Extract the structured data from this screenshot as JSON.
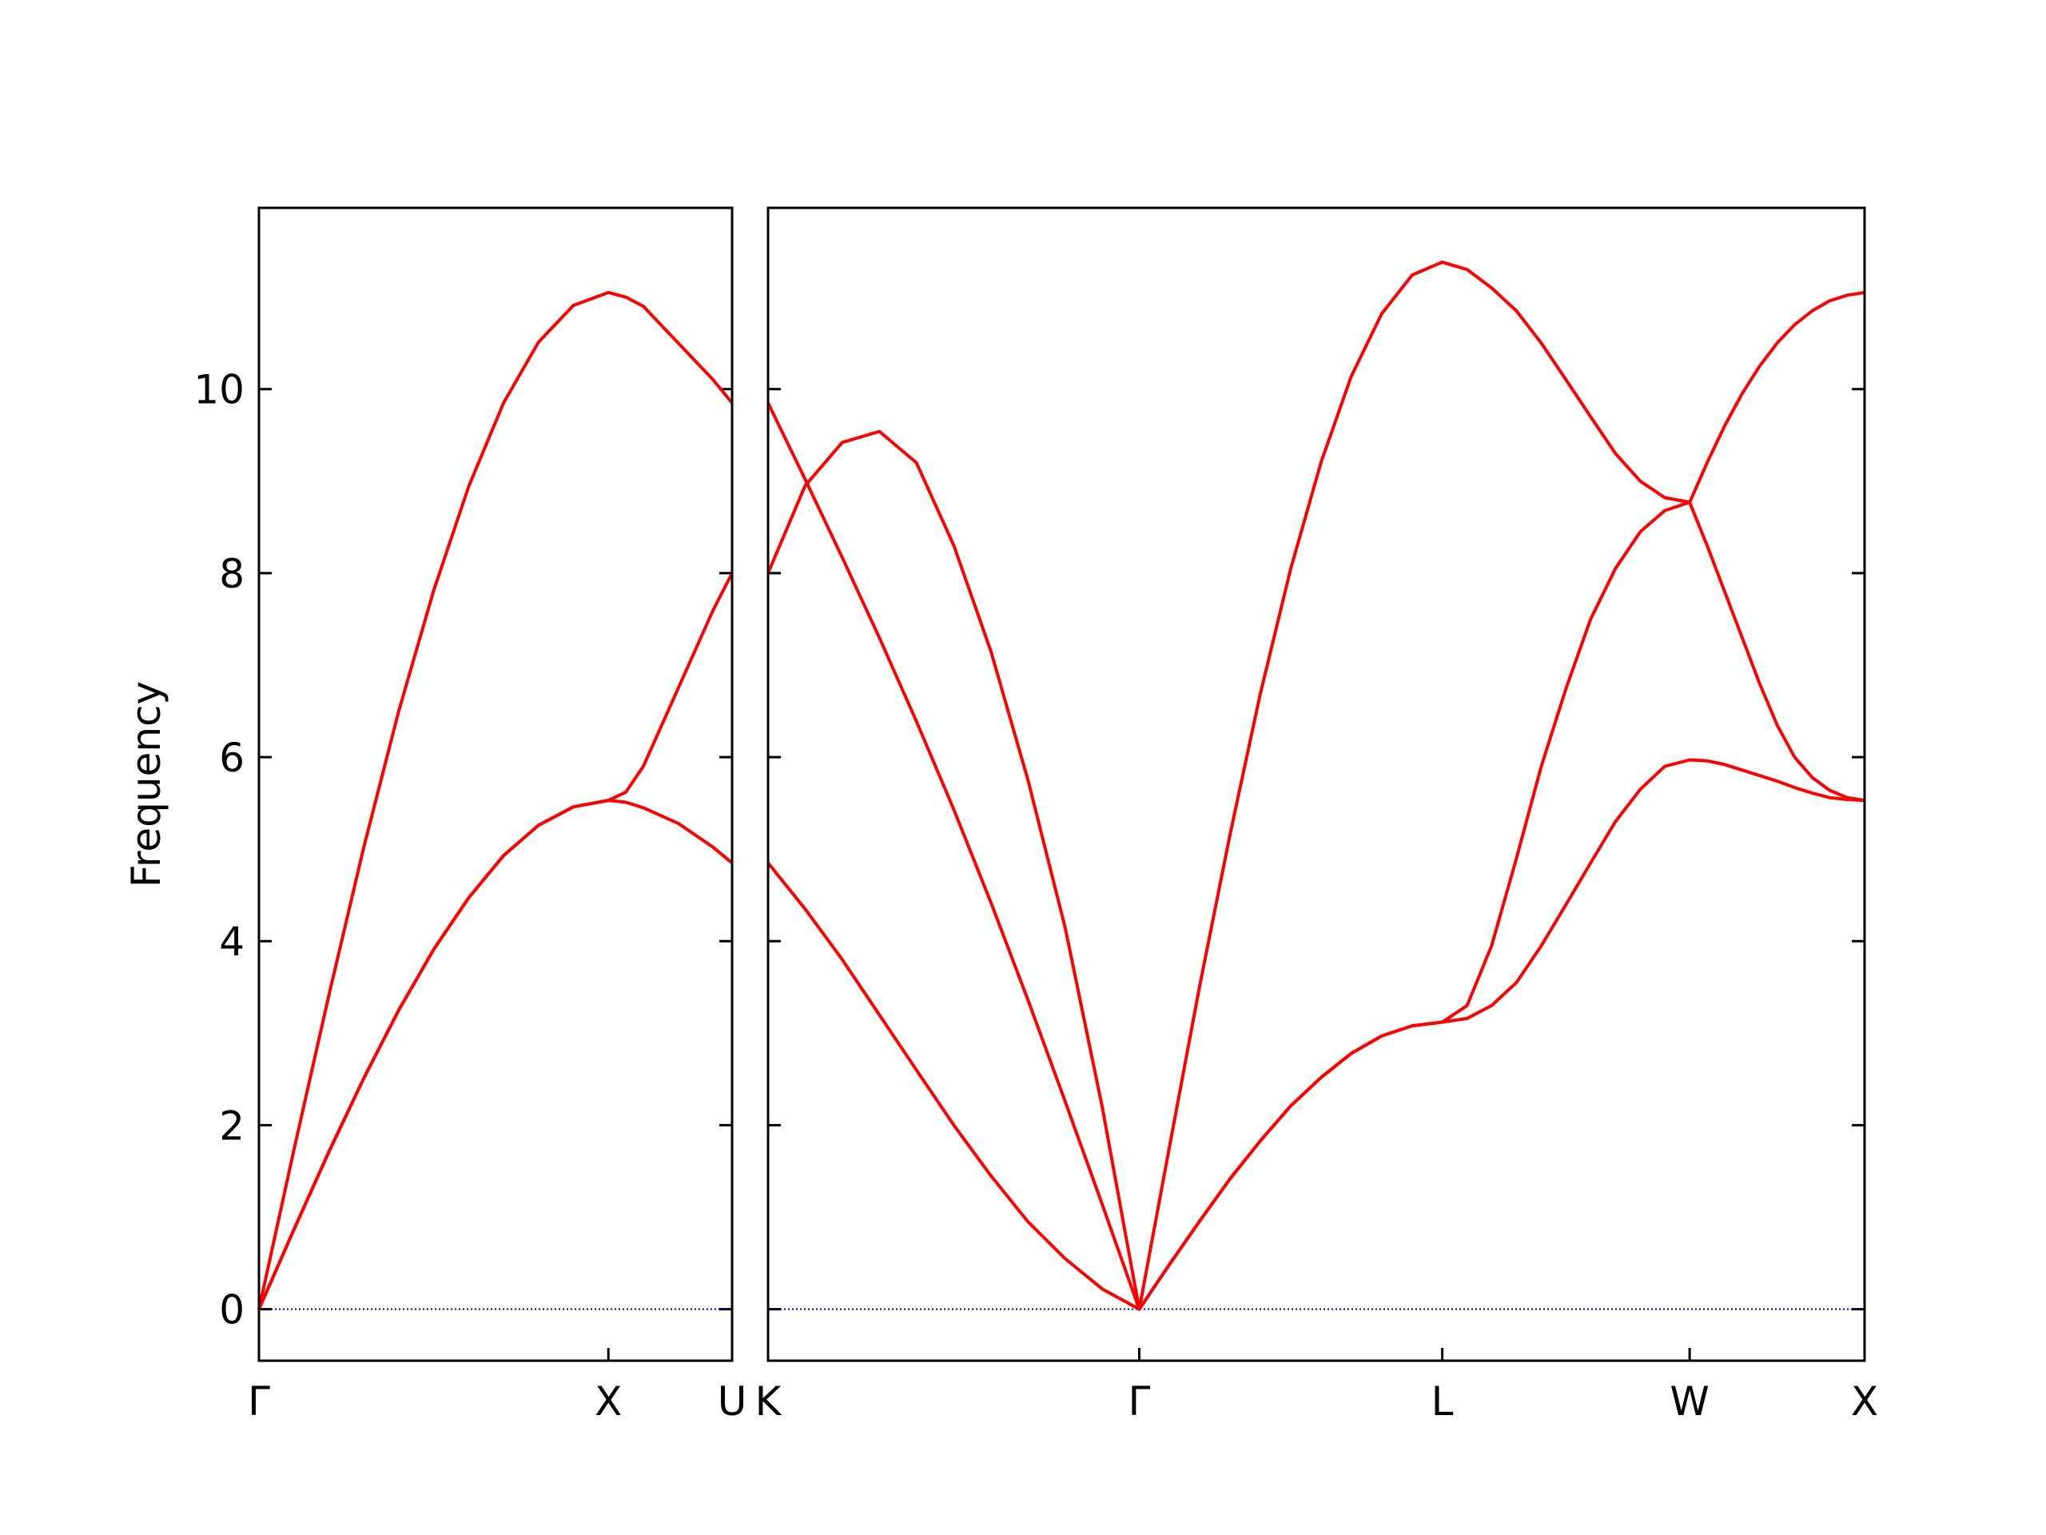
{
  "chart_data": [
    {
      "type": "line",
      "ylabel": "Frequency",
      "x": [
        0,
        0.1,
        0.2,
        0.3,
        0.4,
        0.5,
        0.6,
        0.7,
        0.8,
        0.9,
        1.0,
        1.05,
        1.1,
        1.2,
        1.3,
        1.354
      ],
      "series": [
        {
          "color": "#ff0000",
          "values": [
            0,
            0.865,
            1.709,
            2.51,
            3.25,
            3.91,
            4.47,
            4.93,
            5.26,
            5.46,
            5.53,
            5.51,
            5.45,
            5.28,
            5.02,
            4.85
          ]
        },
        {
          "color": "#ff0000",
          "values": [
            0,
            0.865,
            1.709,
            2.51,
            3.25,
            3.91,
            4.47,
            4.93,
            5.26,
            5.46,
            5.53,
            5.62,
            5.9,
            6.75,
            7.6,
            8.0
          ]
        },
        {
          "color": "#ff0000",
          "values": [
            0,
            1.73,
            3.41,
            5.02,
            6.5,
            7.81,
            8.94,
            9.85,
            10.51,
            10.91,
            11.05,
            11.0,
            10.9,
            10.5,
            10.1,
            9.85
          ]
        }
      ],
      "xlim": [
        0,
        1.354
      ],
      "xticks": [
        {
          "value": 0,
          "label": "Γ"
        },
        {
          "value": 1,
          "label": "X"
        },
        {
          "value": 1.354,
          "label": "U"
        }
      ],
      "ylim": [
        -0.56,
        11.97
      ],
      "yticks": [
        0,
        2,
        4,
        6,
        8,
        10
      ],
      "hline": 0,
      "hline_color": "#0000cc"
    },
    {
      "type": "line",
      "x": [
        1.354,
        1.46,
        1.566,
        1.672,
        1.778,
        1.885,
        1.991,
        2.097,
        2.203,
        2.309,
        2.415,
        2.502,
        2.588,
        2.675,
        2.761,
        2.848,
        2.935,
        3.021,
        3.108,
        3.195,
        3.281,
        3.352,
        3.422,
        3.493,
        3.564,
        3.635,
        3.705,
        3.776,
        3.847,
        3.917,
        3.988,
        4.038,
        4.088,
        4.138,
        4.188,
        4.238,
        4.288,
        4.338,
        4.388,
        4.438,
        4.488
      ],
      "series": [
        {
          "color": "#ff0000",
          "values": [
            4.85,
            4.35,
            3.8,
            3.2,
            2.6,
            2.0,
            1.45,
            0.95,
            0.55,
            0.22,
            0,
            0.49,
            0.96,
            1.42,
            1.83,
            2.21,
            2.52,
            2.78,
            2.97,
            3.08,
            3.12,
            3.16,
            3.3,
            3.55,
            3.95,
            4.4,
            4.85,
            5.3,
            5.65,
            5.9,
            5.97,
            5.96,
            5.92,
            5.86,
            5.8,
            5.74,
            5.67,
            5.61,
            5.56,
            5.54,
            5.53
          ]
        },
        {
          "color": "#ff0000",
          "values": [
            9.85,
            9.02,
            8.17,
            7.3,
            6.39,
            5.43,
            4.42,
            3.36,
            2.26,
            1.14,
            0,
            0.49,
            0.96,
            1.42,
            1.83,
            2.21,
            2.52,
            2.78,
            2.97,
            3.08,
            3.12,
            3.3,
            3.95,
            4.9,
            5.9,
            6.75,
            7.5,
            8.05,
            8.45,
            8.68,
            8.77,
            8.3,
            7.8,
            7.3,
            6.8,
            6.35,
            6.0,
            5.78,
            5.64,
            5.56,
            5.53
          ]
        },
        {
          "color": "#ff0000",
          "values": [
            8.0,
            8.95,
            9.42,
            9.54,
            9.2,
            8.3,
            7.15,
            5.75,
            4.15,
            2.2,
            0,
            1.78,
            3.52,
            5.17,
            6.69,
            8.05,
            9.21,
            10.14,
            10.82,
            11.24,
            11.38,
            11.3,
            11.1,
            10.85,
            10.5,
            10.1,
            9.7,
            9.3,
            9.0,
            8.82,
            8.77,
            9.2,
            9.6,
            9.95,
            10.25,
            10.5,
            10.7,
            10.85,
            10.96,
            11.02,
            11.05
          ]
        }
      ],
      "xlim": [
        1.354,
        4.488
      ],
      "xticks": [
        {
          "value": 1.354,
          "label": "K"
        },
        {
          "value": 2.415,
          "label": "Γ"
        },
        {
          "value": 3.281,
          "label": "L"
        },
        {
          "value": 3.988,
          "label": "W"
        },
        {
          "value": 4.488,
          "label": "X"
        }
      ],
      "ylim": [
        -0.56,
        11.97
      ],
      "yticks": [
        0,
        2,
        4,
        6,
        8,
        10
      ],
      "ytick_labels": false,
      "hline": 0,
      "hline_color": "#0000cc"
    }
  ]
}
